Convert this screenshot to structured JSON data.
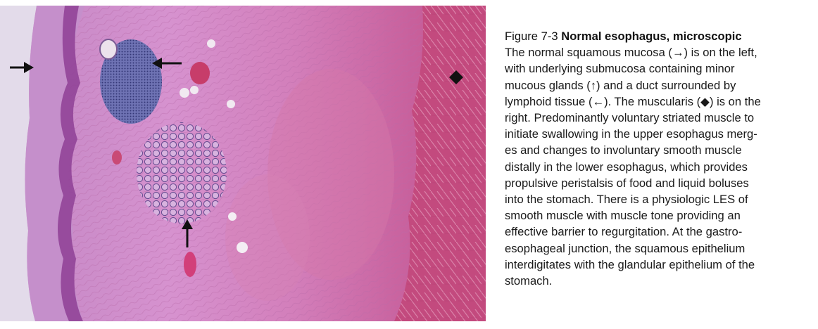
{
  "figure": {
    "label": "Figure 7-3",
    "title": "Normal esophagus, microscopic",
    "caption_lines": [
      "The normal squamous mucosa (→) is on the left,",
      "with underlying submucosa containing minor",
      "mucous glands (↑) and a duct surrounded by",
      "lymphoid tissue (←). The muscularis (◆) is on the",
      "right. Predominantly voluntary striated muscle to",
      "initiate swallowing in the upper esophagus merg-",
      "es and changes to involuntary smooth muscle",
      "distally in the lower esophagus, which provides",
      "propulsive peristalsis of food and liquid boluses",
      "into the stomach. There is a physiologic LES of",
      "smooth muscle with muscle tone providing an",
      "effective barrier to regurgitation. At the gastro-",
      "esophageal junction, the squamous epithelium",
      "interdigitates with the glandular epithelium of the",
      "stomach."
    ]
  },
  "colors": {
    "background_stain": "#cf86c4",
    "epithelium": "#9c4a9e",
    "lymphoid": "#4a4f9c",
    "muscle": "#c45078",
    "arrow": "#111111"
  }
}
